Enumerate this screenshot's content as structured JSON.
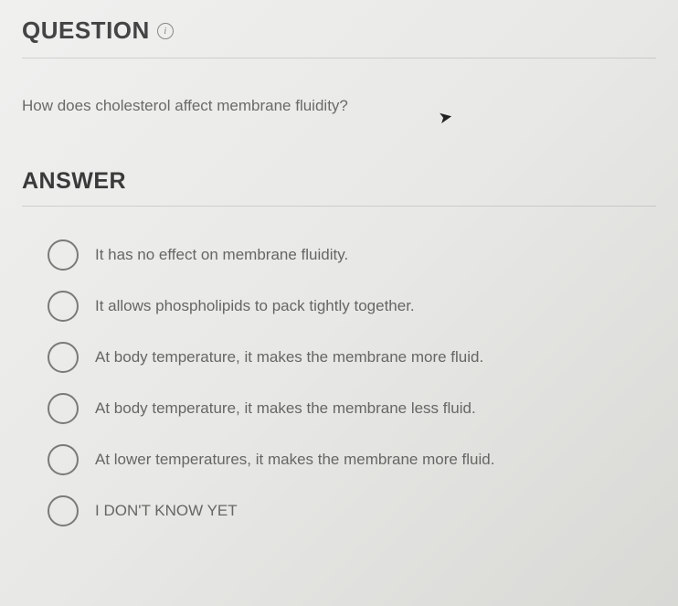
{
  "question": {
    "header_label": "QUESTION",
    "info_icon_glyph": "i",
    "text": "How does cholesterol affect membrane fluidity?"
  },
  "answer": {
    "header_label": "ANSWER",
    "options": [
      {
        "label": "It has no effect on membrane fluidity."
      },
      {
        "label": "It allows phospholipids to pack tightly together."
      },
      {
        "label": "At body temperature, it makes the membrane more fluid."
      },
      {
        "label": "At body temperature, it makes the membrane less fluid."
      },
      {
        "label": "At lower temperatures, it makes the membrane more fluid."
      },
      {
        "label": "I DON'T KNOW YET"
      }
    ]
  },
  "cursor_glyph": "➤"
}
